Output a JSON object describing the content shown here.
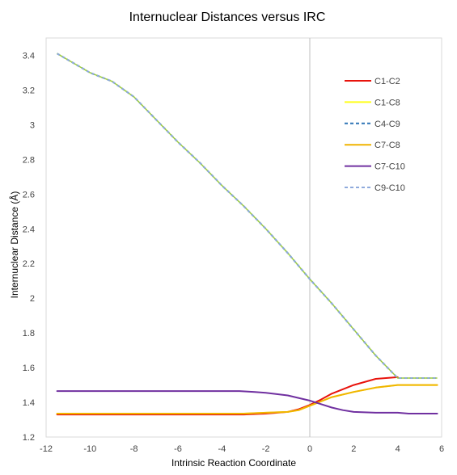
{
  "chart_data": {
    "type": "line",
    "title": "Internuclear Distances versus IRC",
    "xlabel": "Intrinsic Reaction Coordinate",
    "ylabel": "Internuclear Distance (Å)",
    "xlim": [
      -12,
      6
    ],
    "ylim": [
      1.2,
      3.5
    ],
    "xticks": [
      "-12",
      "-10",
      "-8",
      "-6",
      "-4",
      "-2",
      "0",
      "2",
      "4",
      "6"
    ],
    "yticks": [
      "1.2",
      "1.4",
      "1.6",
      "1.8",
      "2",
      "2.2",
      "2.4",
      "2.6",
      "2.8",
      "3",
      "3.2",
      "3.4"
    ],
    "grid": false,
    "legend_position": "top-right",
    "series": [
      {
        "name": "C1-C2",
        "color": "#e8130c",
        "dash": "solid",
        "x": [
          -11.5,
          -10,
          -8,
          -6,
          -4,
          -3,
          -2,
          -1,
          -0.5,
          0,
          0.5,
          1,
          2,
          3,
          4
        ],
        "y": [
          1.33,
          1.33,
          1.33,
          1.33,
          1.33,
          1.33,
          1.335,
          1.345,
          1.36,
          1.385,
          1.415,
          1.45,
          1.5,
          1.535,
          1.545
        ]
      },
      {
        "name": "C1-C8",
        "color": "#ffff1a",
        "dash": "solid",
        "x": [
          -11.5,
          -10,
          -8,
          -6,
          -4,
          -3,
          -2,
          -1,
          -0.5,
          0,
          0.5,
          1,
          2,
          3,
          4,
          5,
          5.8
        ],
        "y": [
          1.335,
          1.335,
          1.335,
          1.335,
          1.335,
          1.335,
          1.34,
          1.345,
          1.355,
          1.38,
          1.405,
          1.43,
          1.46,
          1.485,
          1.5,
          1.5,
          1.5
        ]
      },
      {
        "name": "C4-C9",
        "color": "#2e75b6",
        "dash": "dash",
        "x": [
          -11.5,
          -10,
          -9,
          -8,
          -7,
          -6,
          -5,
          -4,
          -3,
          -2,
          -1,
          0,
          1,
          2,
          3,
          4,
          5,
          5.8
        ],
        "y": [
          3.41,
          3.3,
          3.25,
          3.16,
          3.03,
          2.9,
          2.78,
          2.65,
          2.53,
          2.4,
          2.26,
          2.11,
          1.97,
          1.82,
          1.67,
          1.54,
          1.54,
          1.54
        ]
      },
      {
        "name": "C7-C8",
        "color": "#f0b400",
        "dash": "solid",
        "x": [
          -11.5,
          -10,
          -8,
          -6,
          -4,
          -3,
          -2,
          -1,
          -0.5,
          0,
          0.5,
          1,
          2,
          3,
          4,
          5,
          5.8
        ],
        "y": [
          1.335,
          1.335,
          1.335,
          1.335,
          1.335,
          1.335,
          1.34,
          1.345,
          1.355,
          1.38,
          1.405,
          1.43,
          1.46,
          1.485,
          1.5,
          1.5,
          1.5
        ]
      },
      {
        "name": "C7-C10",
        "color": "#7030a0",
        "dash": "solid",
        "x": [
          -11.5,
          -10,
          -8,
          -6,
          -4,
          -3.2,
          -2.5,
          -2,
          -1,
          0,
          0.5,
          1,
          1.5,
          2,
          3,
          4,
          4.5,
          5.8
        ],
        "y": [
          1.465,
          1.465,
          1.465,
          1.465,
          1.465,
          1.465,
          1.46,
          1.455,
          1.44,
          1.41,
          1.39,
          1.37,
          1.355,
          1.345,
          1.34,
          1.34,
          1.335,
          1.335
        ]
      },
      {
        "name": "C9-C10",
        "color": "#8faadc",
        "dash": "dash",
        "x": [
          -11.5,
          -10,
          -9,
          -8,
          -7,
          -6,
          -5,
          -4,
          -3,
          -2,
          -1,
          0,
          1,
          2,
          3,
          4,
          5,
          5.8
        ],
        "y": [
          3.41,
          3.3,
          3.25,
          3.16,
          3.03,
          2.9,
          2.78,
          2.65,
          2.53,
          2.4,
          2.26,
          2.11,
          1.97,
          1.82,
          1.67,
          1.54,
          1.54,
          1.54
        ]
      }
    ]
  }
}
